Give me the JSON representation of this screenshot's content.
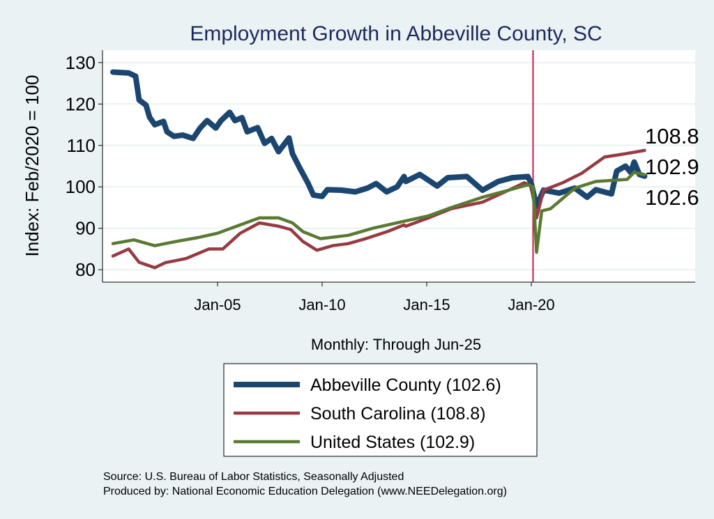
{
  "chart_data": {
    "type": "line",
    "title": "Employment Growth in Abbeville  County, SC",
    "xlabel": "Monthly: Through Jun-25",
    "ylabel": "Index: Feb/2020 = 100",
    "ylim": [
      77,
      133
    ],
    "xlim": [
      "1999-07",
      "2027-11"
    ],
    "yticks": [
      80,
      90,
      100,
      110,
      120,
      130
    ],
    "xticks": [
      {
        "date": "2005-01",
        "label": "Jan-05"
      },
      {
        "date": "2010-01",
        "label": "Jan-10"
      },
      {
        "date": "2015-01",
        "label": "Jan-15"
      },
      {
        "date": "2020-01",
        "label": "Jan-20"
      }
    ],
    "grid": true,
    "reference_line": {
      "date": "2020-02",
      "color": "#c8194a"
    },
    "legend_position": "bottom",
    "series": [
      {
        "name": "Abbeville  County (102.6)",
        "end_label": "102.6",
        "color": "#1b4670",
        "points": [
          [
            "2000-01",
            127.7
          ],
          [
            "2000-10",
            127.5
          ],
          [
            "2001-02",
            126.7
          ],
          [
            "2001-04",
            121
          ],
          [
            "2001-08",
            119.7
          ],
          [
            "2001-10",
            116.8
          ],
          [
            "2002-01",
            115
          ],
          [
            "2002-06",
            115.8
          ],
          [
            "2002-08",
            113.3
          ],
          [
            "2002-12",
            112.2
          ],
          [
            "2003-05",
            112.5
          ],
          [
            "2003-11",
            111.7
          ],
          [
            "2004-03",
            114.2
          ],
          [
            "2004-07",
            116
          ],
          [
            "2004-12",
            114.2
          ],
          [
            "2005-03",
            116
          ],
          [
            "2005-08",
            118
          ],
          [
            "2005-11",
            116
          ],
          [
            "2006-03",
            116.7
          ],
          [
            "2006-06",
            113.3
          ],
          [
            "2006-12",
            114.3
          ],
          [
            "2007-04",
            110.5
          ],
          [
            "2007-08",
            111.7
          ],
          [
            "2007-12",
            108.5
          ],
          [
            "2008-06",
            111.8
          ],
          [
            "2008-08",
            108
          ],
          [
            "2008-12",
            104.7
          ],
          [
            "2009-05",
            100.8
          ],
          [
            "2009-08",
            98
          ],
          [
            "2010-01",
            97.7
          ],
          [
            "2010-04",
            99.3
          ],
          [
            "2010-12",
            99.2
          ],
          [
            "2011-08",
            98.8
          ],
          [
            "2012-03",
            99.7
          ],
          [
            "2012-08",
            100.8
          ],
          [
            "2013-02",
            98.8
          ],
          [
            "2013-08",
            100
          ],
          [
            "2013-12",
            102.5
          ],
          [
            "2014-01",
            101.3
          ],
          [
            "2014-09",
            103
          ],
          [
            "2015-07",
            100.2
          ],
          [
            "2016-01",
            102.2
          ],
          [
            "2016-12",
            102.5
          ],
          [
            "2017-09",
            99.2
          ],
          [
            "2018-06",
            101.3
          ],
          [
            "2019-02",
            102.2
          ],
          [
            "2019-11",
            102.5
          ],
          [
            "2020-01",
            100.8
          ],
          [
            "2020-04",
            95.3
          ],
          [
            "2020-08",
            99.2
          ],
          [
            "2021-05",
            98.5
          ],
          [
            "2022-02",
            99.7
          ],
          [
            "2022-09",
            97.5
          ],
          [
            "2023-02",
            99.3
          ],
          [
            "2023-11",
            98.3
          ],
          [
            "2024-02",
            103.8
          ],
          [
            "2024-07",
            105
          ],
          [
            "2024-10",
            103.5
          ],
          [
            "2024-12",
            106
          ],
          [
            "2025-03",
            103
          ],
          [
            "2025-06",
            102.6
          ]
        ]
      },
      {
        "name": "South Carolina (108.8)",
        "end_label": "108.8",
        "color": "#973a42",
        "points": [
          [
            "2000-01",
            83.3
          ],
          [
            "2000-10",
            85
          ],
          [
            "2001-04",
            81.8
          ],
          [
            "2002-01",
            80.5
          ],
          [
            "2002-07",
            81.7
          ],
          [
            "2003-07",
            82.7
          ],
          [
            "2004-08",
            85
          ],
          [
            "2005-04",
            85
          ],
          [
            "2006-02",
            88.8
          ],
          [
            "2007-01",
            91.3
          ],
          [
            "2007-12",
            90.5
          ],
          [
            "2008-07",
            89.7
          ],
          [
            "2009-02",
            86.8
          ],
          [
            "2009-10",
            84.7
          ],
          [
            "2010-07",
            85.8
          ],
          [
            "2011-04",
            86.3
          ],
          [
            "2012-02",
            87.5
          ],
          [
            "2013-03",
            89.3
          ],
          [
            "2013-12",
            90.8
          ],
          [
            "2014-01",
            90.5
          ],
          [
            "2015-02",
            92.5
          ],
          [
            "2016-03",
            94.7
          ],
          [
            "2017-09",
            96.3
          ],
          [
            "2018-12",
            99.2
          ],
          [
            "2019-09",
            101
          ],
          [
            "2020-01",
            100.2
          ],
          [
            "2020-04",
            92.5
          ],
          [
            "2020-08",
            99.2
          ],
          [
            "2021-07",
            101
          ],
          [
            "2022-06",
            103.3
          ],
          [
            "2023-07",
            107.2
          ],
          [
            "2024-07",
            108
          ],
          [
            "2025-06",
            108.8
          ]
        ]
      },
      {
        "name": "United States (102.9)",
        "end_label": "102.9",
        "color": "#5a7a32",
        "points": [
          [
            "2000-01",
            86.3
          ],
          [
            "2001-01",
            87.2
          ],
          [
            "2002-01",
            85.8
          ],
          [
            "2003-01",
            86.8
          ],
          [
            "2004-01",
            87.7
          ],
          [
            "2005-01",
            88.8
          ],
          [
            "2005-10",
            90.2
          ],
          [
            "2007-01",
            92.5
          ],
          [
            "2007-12",
            92.5
          ],
          [
            "2008-08",
            91.3
          ],
          [
            "2009-02",
            89.2
          ],
          [
            "2009-12",
            87.5
          ],
          [
            "2011-04",
            88.3
          ],
          [
            "2012-06",
            90
          ],
          [
            "2013-12",
            91.7
          ],
          [
            "2015-02",
            93
          ],
          [
            "2016-03",
            95
          ],
          [
            "2017-09",
            97.5
          ],
          [
            "2018-12",
            99.2
          ],
          [
            "2019-11",
            100.5
          ],
          [
            "2020-02",
            100
          ],
          [
            "2020-04",
            84.2
          ],
          [
            "2020-07",
            94.2
          ],
          [
            "2020-12",
            94.7
          ],
          [
            "2022-02",
            99.7
          ],
          [
            "2023-02",
            101.3
          ],
          [
            "2024-08",
            101.8
          ],
          [
            "2024-12",
            103.5
          ],
          [
            "2025-06",
            102.9
          ]
        ]
      }
    ],
    "notes": [
      "Source: U.S. Bureau of Labor Statistics, Seasonally Adjusted",
      "Produced by: National Economic Education Delegation (www.NEEDelegation.org)"
    ]
  }
}
